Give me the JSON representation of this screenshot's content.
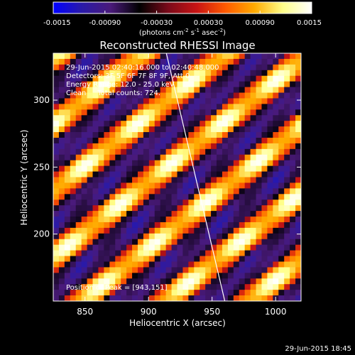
{
  "colorbar": {
    "ticks": [
      "-0.0015",
      "-0.00090",
      "-0.00030",
      "0.00030",
      "0.00090",
      "0.0015"
    ],
    "units_main": "(photons cm",
    "units_exp1": "-2",
    "units_mid": " s",
    "units_exp2": "-1",
    "units_tail": " asec",
    "units_exp3": "-2",
    "units_close": ")",
    "stops": [
      "#0000ff",
      "#2a1aa8",
      "#4a1a7a",
      "#000000",
      "#7a0a1a",
      "#c81414",
      "#ff5a00",
      "#ffaa00",
      "#ffff8a",
      "#ffffff"
    ]
  },
  "chart_data": {
    "type": "heatmap",
    "title": "Reconstructed RHESSI Image",
    "xlabel": "Heliocentric X (arcsec)",
    "ylabel": "Heliocentric Y (arcsec)",
    "xlim": [
      825,
      1020
    ],
    "ylim": [
      150,
      335
    ],
    "xticks": [
      850,
      900,
      950,
      1000
    ],
    "yticks": [
      200,
      250,
      300
    ],
    "pattern": "diagonal fringes from upper-left to lower-right",
    "limb": [
      [
        914,
        335
      ],
      [
        960,
        150
      ]
    ],
    "annotations": [
      "29-Jun-2015 02:40:16.000 to 02:40:48.000",
      "Detectors: 3F 5F 6F 7F 8F 9F, Att 0",
      "Energy Range: 12.0 - 25.0 keV",
      "Clean     Total counts: 724."
    ],
    "peak_label": "Position of Peak = [943,151]"
  },
  "footer": {
    "timestamp": "29-Jun-2015 18:45"
  }
}
